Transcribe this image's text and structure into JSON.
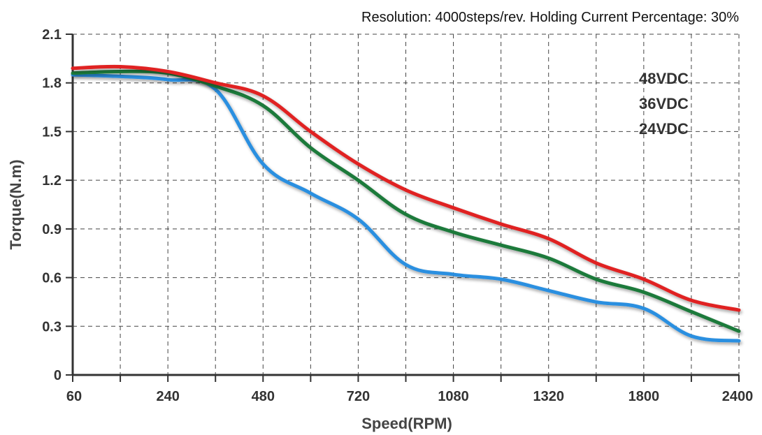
{
  "chart_data": {
    "type": "line",
    "subtitle": "Resolution: 4000steps/rev.  Holding Current Percentage: 30%",
    "xlabel": "Speed(RPM)",
    "ylabel": "Torque(N.m)",
    "x_tick_labels": [
      "60",
      "240",
      "480",
      "720",
      "1080",
      "1320",
      "1800",
      "2400"
    ],
    "y_tick_labels": [
      "0",
      "0.3",
      "0.6",
      "0.9",
      "1.2",
      "1.5",
      "1.8",
      "2.1"
    ],
    "ylim": [
      0,
      2.1
    ],
    "grid": true,
    "legend_position": "top-right",
    "x_scale": "categorical-ordinal",
    "series": [
      {
        "name": "48VDC",
        "color": "#e02020",
        "x": [
          "60",
          "",
          "240",
          "",
          "480",
          "",
          "720",
          "",
          "1080",
          "",
          "1320",
          "",
          "1800",
          "",
          "2400"
        ],
        "values": [
          1.89,
          1.9,
          1.87,
          1.8,
          1.72,
          1.5,
          1.3,
          1.14,
          1.03,
          0.93,
          0.84,
          0.69,
          0.59,
          0.46,
          0.4
        ]
      },
      {
        "name": "36VDC",
        "color": "#1e7a3a",
        "x": [
          "60",
          "",
          "240",
          "",
          "480",
          "",
          "720",
          "",
          "1080",
          "",
          "1320",
          "",
          "1800",
          "",
          "2400"
        ],
        "values": [
          1.86,
          1.87,
          1.86,
          1.78,
          1.66,
          1.4,
          1.2,
          0.99,
          0.88,
          0.8,
          0.72,
          0.59,
          0.51,
          0.39,
          0.27
        ]
      },
      {
        "name": "24VDC",
        "color": "#2a8fe0",
        "x": [
          "60",
          "",
          "240",
          "",
          "480",
          "",
          "720",
          "",
          "1080",
          "",
          "1320",
          "",
          "1800",
          "",
          "2400"
        ],
        "values": [
          1.85,
          1.84,
          1.82,
          1.76,
          1.3,
          1.12,
          0.96,
          0.68,
          0.62,
          0.59,
          0.52,
          0.45,
          0.41,
          0.24,
          0.21
        ]
      }
    ]
  }
}
